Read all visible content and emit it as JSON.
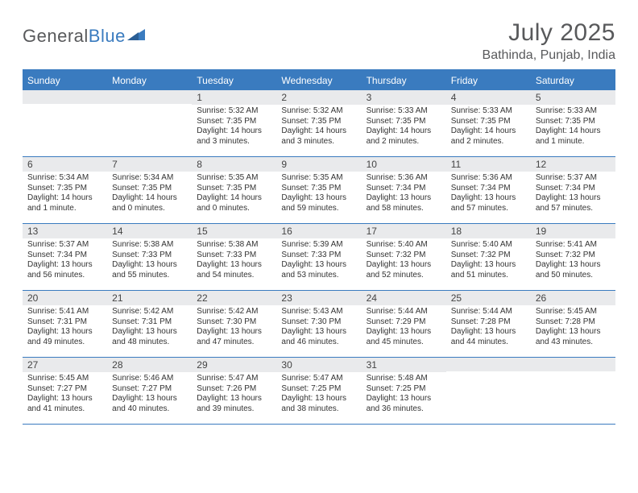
{
  "logo": {
    "text1": "General",
    "text2": "Blue"
  },
  "title": "July 2025",
  "location": "Bathinda, Punjab, India",
  "colors": {
    "accent": "#3a7bbf",
    "headerBg": "#3a7bbf",
    "dayNumBg": "#e9eaec",
    "text": "#58595b"
  },
  "dayNames": [
    "Sunday",
    "Monday",
    "Tuesday",
    "Wednesday",
    "Thursday",
    "Friday",
    "Saturday"
  ],
  "weeks": [
    [
      null,
      null,
      {
        "n": "1",
        "sr": "5:32 AM",
        "ss": "7:35 PM",
        "dl": "14 hours and 3 minutes."
      },
      {
        "n": "2",
        "sr": "5:32 AM",
        "ss": "7:35 PM",
        "dl": "14 hours and 3 minutes."
      },
      {
        "n": "3",
        "sr": "5:33 AM",
        "ss": "7:35 PM",
        "dl": "14 hours and 2 minutes."
      },
      {
        "n": "4",
        "sr": "5:33 AM",
        "ss": "7:35 PM",
        "dl": "14 hours and 2 minutes."
      },
      {
        "n": "5",
        "sr": "5:33 AM",
        "ss": "7:35 PM",
        "dl": "14 hours and 1 minute."
      }
    ],
    [
      {
        "n": "6",
        "sr": "5:34 AM",
        "ss": "7:35 PM",
        "dl": "14 hours and 1 minute."
      },
      {
        "n": "7",
        "sr": "5:34 AM",
        "ss": "7:35 PM",
        "dl": "14 hours and 0 minutes."
      },
      {
        "n": "8",
        "sr": "5:35 AM",
        "ss": "7:35 PM",
        "dl": "14 hours and 0 minutes."
      },
      {
        "n": "9",
        "sr": "5:35 AM",
        "ss": "7:35 PM",
        "dl": "13 hours and 59 minutes."
      },
      {
        "n": "10",
        "sr": "5:36 AM",
        "ss": "7:34 PM",
        "dl": "13 hours and 58 minutes."
      },
      {
        "n": "11",
        "sr": "5:36 AM",
        "ss": "7:34 PM",
        "dl": "13 hours and 57 minutes."
      },
      {
        "n": "12",
        "sr": "5:37 AM",
        "ss": "7:34 PM",
        "dl": "13 hours and 57 minutes."
      }
    ],
    [
      {
        "n": "13",
        "sr": "5:37 AM",
        "ss": "7:34 PM",
        "dl": "13 hours and 56 minutes."
      },
      {
        "n": "14",
        "sr": "5:38 AM",
        "ss": "7:33 PM",
        "dl": "13 hours and 55 minutes."
      },
      {
        "n": "15",
        "sr": "5:38 AM",
        "ss": "7:33 PM",
        "dl": "13 hours and 54 minutes."
      },
      {
        "n": "16",
        "sr": "5:39 AM",
        "ss": "7:33 PM",
        "dl": "13 hours and 53 minutes."
      },
      {
        "n": "17",
        "sr": "5:40 AM",
        "ss": "7:32 PM",
        "dl": "13 hours and 52 minutes."
      },
      {
        "n": "18",
        "sr": "5:40 AM",
        "ss": "7:32 PM",
        "dl": "13 hours and 51 minutes."
      },
      {
        "n": "19",
        "sr": "5:41 AM",
        "ss": "7:32 PM",
        "dl": "13 hours and 50 minutes."
      }
    ],
    [
      {
        "n": "20",
        "sr": "5:41 AM",
        "ss": "7:31 PM",
        "dl": "13 hours and 49 minutes."
      },
      {
        "n": "21",
        "sr": "5:42 AM",
        "ss": "7:31 PM",
        "dl": "13 hours and 48 minutes."
      },
      {
        "n": "22",
        "sr": "5:42 AM",
        "ss": "7:30 PM",
        "dl": "13 hours and 47 minutes."
      },
      {
        "n": "23",
        "sr": "5:43 AM",
        "ss": "7:30 PM",
        "dl": "13 hours and 46 minutes."
      },
      {
        "n": "24",
        "sr": "5:44 AM",
        "ss": "7:29 PM",
        "dl": "13 hours and 45 minutes."
      },
      {
        "n": "25",
        "sr": "5:44 AM",
        "ss": "7:28 PM",
        "dl": "13 hours and 44 minutes."
      },
      {
        "n": "26",
        "sr": "5:45 AM",
        "ss": "7:28 PM",
        "dl": "13 hours and 43 minutes."
      }
    ],
    [
      {
        "n": "27",
        "sr": "5:45 AM",
        "ss": "7:27 PM",
        "dl": "13 hours and 41 minutes."
      },
      {
        "n": "28",
        "sr": "5:46 AM",
        "ss": "7:27 PM",
        "dl": "13 hours and 40 minutes."
      },
      {
        "n": "29",
        "sr": "5:47 AM",
        "ss": "7:26 PM",
        "dl": "13 hours and 39 minutes."
      },
      {
        "n": "30",
        "sr": "5:47 AM",
        "ss": "7:25 PM",
        "dl": "13 hours and 38 minutes."
      },
      {
        "n": "31",
        "sr": "5:48 AM",
        "ss": "7:25 PM",
        "dl": "13 hours and 36 minutes."
      },
      null,
      null
    ]
  ],
  "labels": {
    "sunrise": "Sunrise:",
    "sunset": "Sunset:",
    "daylight": "Daylight:"
  }
}
